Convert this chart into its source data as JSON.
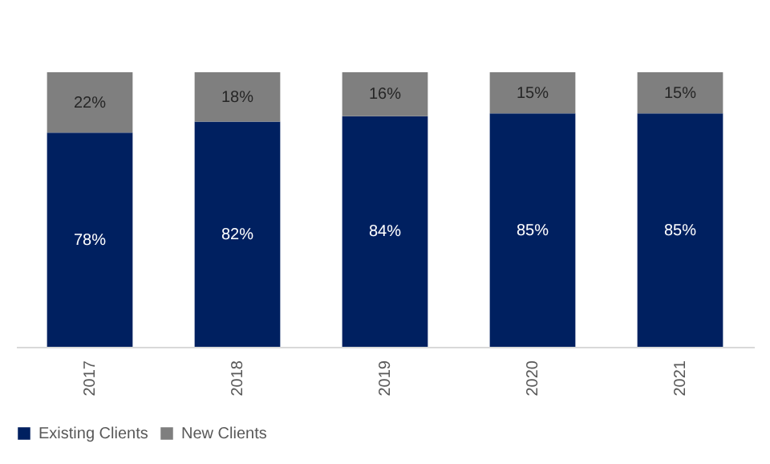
{
  "chart_data": {
    "type": "bar",
    "stacked": true,
    "categories": [
      "2017",
      "2018",
      "2019",
      "2020",
      "2021"
    ],
    "series": [
      {
        "name": "Existing Clients",
        "color": "#002060",
        "values": [
          78,
          82,
          84,
          85,
          85
        ],
        "value_labels": [
          "78%",
          "82%",
          "84%",
          "85%",
          "85%"
        ]
      },
      {
        "name": "New Clients",
        "color": "#7f7f7f",
        "values": [
          22,
          18,
          16,
          15,
          15
        ],
        "value_labels": [
          "22%",
          "18%",
          "16%",
          "15%",
          "15%"
        ]
      }
    ],
    "ylim": [
      0,
      100
    ],
    "tick_labels": "x",
    "grid": false,
    "legend": "bottom"
  }
}
